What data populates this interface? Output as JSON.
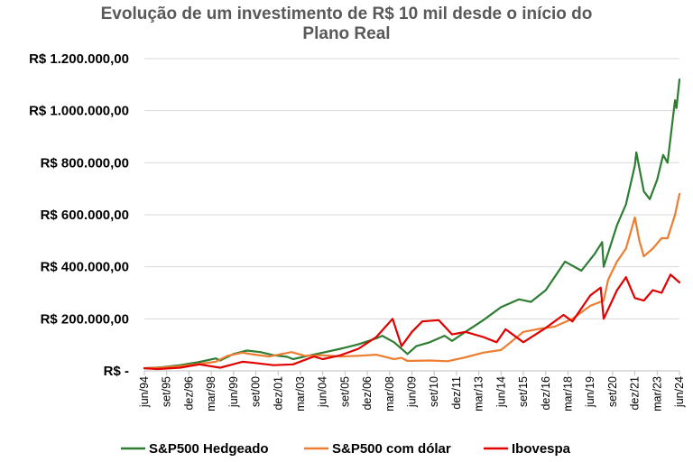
{
  "chart_data": {
    "type": "line",
    "title_line1": "Evolução de um investimento de R$ 10 mil desde o início do",
    "title_line2": "Plano Real",
    "ylim": [
      0,
      1200000
    ],
    "y_ticks": [
      {
        "value": 0,
        "label": "R$ -"
      },
      {
        "value": 200000,
        "label": "R$ 200.000,00"
      },
      {
        "value": 400000,
        "label": "R$ 400.000,00"
      },
      {
        "value": 600000,
        "label": "R$ 600.000,00"
      },
      {
        "value": 800000,
        "label": "R$ 800.000,00"
      },
      {
        "value": 1000000,
        "label": "R$ 1.000.000,00"
      },
      {
        "value": 1200000,
        "label": "R$ 1.200.000,00"
      }
    ],
    "x_range": [
      "1994-06",
      "2024-06"
    ],
    "x_ticks": [
      {
        "date": "1994-06",
        "label": "jun/94"
      },
      {
        "date": "1995-09",
        "label": "set/95"
      },
      {
        "date": "1996-12",
        "label": "dez/96"
      },
      {
        "date": "1998-03",
        "label": "mar/98"
      },
      {
        "date": "1999-06",
        "label": "jun/99"
      },
      {
        "date": "2000-09",
        "label": "set/00"
      },
      {
        "date": "2001-12",
        "label": "dez/01"
      },
      {
        "date": "2003-03",
        "label": "mar/03"
      },
      {
        "date": "2004-06",
        "label": "jun/04"
      },
      {
        "date": "2005-09",
        "label": "set/05"
      },
      {
        "date": "2006-12",
        "label": "dez/06"
      },
      {
        "date": "2008-03",
        "label": "mar/08"
      },
      {
        "date": "2009-06",
        "label": "jun/09"
      },
      {
        "date": "2010-09",
        "label": "set/10"
      },
      {
        "date": "2011-12",
        "label": "dez/11"
      },
      {
        "date": "2013-03",
        "label": "mar/13"
      },
      {
        "date": "2014-06",
        "label": "jun/14"
      },
      {
        "date": "2015-09",
        "label": "set/15"
      },
      {
        "date": "2016-12",
        "label": "dez/16"
      },
      {
        "date": "2018-03",
        "label": "mar/18"
      },
      {
        "date": "2019-06",
        "label": "jun/19"
      },
      {
        "date": "2020-09",
        "label": "set/20"
      },
      {
        "date": "2021-12",
        "label": "dez/21"
      },
      {
        "date": "2023-03",
        "label": "mar/23"
      },
      {
        "date": "2024-06",
        "label": "jun/24"
      }
    ],
    "grid": "horizontal",
    "legend_position": "bottom",
    "series": [
      {
        "name": "S&P500 Hedgeado",
        "color": "#2e7d32",
        "points": [
          [
            "1994-06",
            10000
          ],
          [
            "1995-06",
            14000
          ],
          [
            "1996-06",
            22000
          ],
          [
            "1997-06",
            33000
          ],
          [
            "1998-06",
            48000
          ],
          [
            "1998-09",
            40000
          ],
          [
            "1999-06",
            65000
          ],
          [
            "2000-03",
            78000
          ],
          [
            "2000-12",
            72000
          ],
          [
            "2001-09",
            60000
          ],
          [
            "2002-06",
            54000
          ],
          [
            "2002-10",
            45000
          ],
          [
            "2003-06",
            55000
          ],
          [
            "2004-06",
            70000
          ],
          [
            "2005-06",
            85000
          ],
          [
            "2006-06",
            102000
          ],
          [
            "2007-06",
            125000
          ],
          [
            "2007-10",
            135000
          ],
          [
            "2008-06",
            110000
          ],
          [
            "2008-12",
            80000
          ],
          [
            "2009-03",
            65000
          ],
          [
            "2009-09",
            95000
          ],
          [
            "2010-06",
            110000
          ],
          [
            "2011-04",
            135000
          ],
          [
            "2011-09",
            115000
          ],
          [
            "2012-06",
            150000
          ],
          [
            "2013-06",
            195000
          ],
          [
            "2014-06",
            245000
          ],
          [
            "2015-06",
            275000
          ],
          [
            "2016-02",
            265000
          ],
          [
            "2016-12",
            310000
          ],
          [
            "2018-01",
            420000
          ],
          [
            "2018-12",
            385000
          ],
          [
            "2019-09",
            450000
          ],
          [
            "2020-02",
            495000
          ],
          [
            "2020-03",
            400000
          ],
          [
            "2020-12",
            560000
          ],
          [
            "2021-06",
            640000
          ],
          [
            "2021-12",
            790000
          ],
          [
            "2022-01",
            840000
          ],
          [
            "2022-06",
            690000
          ],
          [
            "2022-10",
            660000
          ],
          [
            "2023-03",
            735000
          ],
          [
            "2023-07",
            830000
          ],
          [
            "2023-10",
            800000
          ],
          [
            "2024-03",
            1040000
          ],
          [
            "2024-04",
            1010000
          ],
          [
            "2024-06",
            1120000
          ]
        ]
      },
      {
        "name": "S&P500 com dólar",
        "color": "#ed7d31",
        "points": [
          [
            "1994-06",
            10000
          ],
          [
            "1995-06",
            13000
          ],
          [
            "1996-06",
            18000
          ],
          [
            "1997-06",
            26000
          ],
          [
            "1998-06",
            35000
          ],
          [
            "1999-02",
            58000
          ],
          [
            "1999-12",
            70000
          ],
          [
            "2000-06",
            64000
          ],
          [
            "2001-06",
            55000
          ],
          [
            "2002-09",
            72000
          ],
          [
            "2003-06",
            58000
          ],
          [
            "2004-06",
            60000
          ],
          [
            "2005-06",
            55000
          ],
          [
            "2006-06",
            58000
          ],
          [
            "2007-06",
            62000
          ],
          [
            "2008-06",
            45000
          ],
          [
            "2008-11",
            50000
          ],
          [
            "2009-03",
            38000
          ],
          [
            "2010-06",
            40000
          ],
          [
            "2011-06",
            37000
          ],
          [
            "2012-06",
            52000
          ],
          [
            "2013-06",
            70000
          ],
          [
            "2014-06",
            80000
          ],
          [
            "2015-09",
            150000
          ],
          [
            "2016-06",
            160000
          ],
          [
            "2017-06",
            170000
          ],
          [
            "2018-06",
            200000
          ],
          [
            "2019-06",
            250000
          ],
          [
            "2020-03",
            270000
          ],
          [
            "2020-06",
            350000
          ],
          [
            "2020-12",
            420000
          ],
          [
            "2021-06",
            470000
          ],
          [
            "2021-12",
            590000
          ],
          [
            "2022-03",
            500000
          ],
          [
            "2022-06",
            440000
          ],
          [
            "2022-12",
            470000
          ],
          [
            "2023-06",
            510000
          ],
          [
            "2023-10",
            510000
          ],
          [
            "2024-03",
            600000
          ],
          [
            "2024-06",
            680000
          ]
        ]
      },
      {
        "name": "Ibovespa",
        "color": "#e00000",
        "points": [
          [
            "1994-06",
            10000
          ],
          [
            "1995-03",
            7000
          ],
          [
            "1996-06",
            12000
          ],
          [
            "1997-07",
            25000
          ],
          [
            "1998-09",
            12000
          ],
          [
            "1999-12",
            35000
          ],
          [
            "2000-06",
            32000
          ],
          [
            "2001-09",
            22000
          ],
          [
            "2002-10",
            25000
          ],
          [
            "2003-12",
            55000
          ],
          [
            "2004-06",
            45000
          ],
          [
            "2005-06",
            60000
          ],
          [
            "2006-06",
            85000
          ],
          [
            "2007-06",
            130000
          ],
          [
            "2008-05",
            200000
          ],
          [
            "2008-11",
            95000
          ],
          [
            "2009-06",
            150000
          ],
          [
            "2010-01",
            190000
          ],
          [
            "2010-12",
            195000
          ],
          [
            "2011-09",
            140000
          ],
          [
            "2012-06",
            150000
          ],
          [
            "2013-06",
            130000
          ],
          [
            "2014-03",
            110000
          ],
          [
            "2014-09",
            160000
          ],
          [
            "2015-09",
            110000
          ],
          [
            "2016-12",
            165000
          ],
          [
            "2017-12",
            215000
          ],
          [
            "2018-06",
            190000
          ],
          [
            "2019-06",
            290000
          ],
          [
            "2020-01",
            320000
          ],
          [
            "2020-03",
            200000
          ],
          [
            "2020-12",
            310000
          ],
          [
            "2021-06",
            360000
          ],
          [
            "2021-12",
            280000
          ],
          [
            "2022-06",
            270000
          ],
          [
            "2022-12",
            310000
          ],
          [
            "2023-06",
            300000
          ],
          [
            "2023-12",
            370000
          ],
          [
            "2024-06",
            340000
          ]
        ]
      }
    ]
  }
}
